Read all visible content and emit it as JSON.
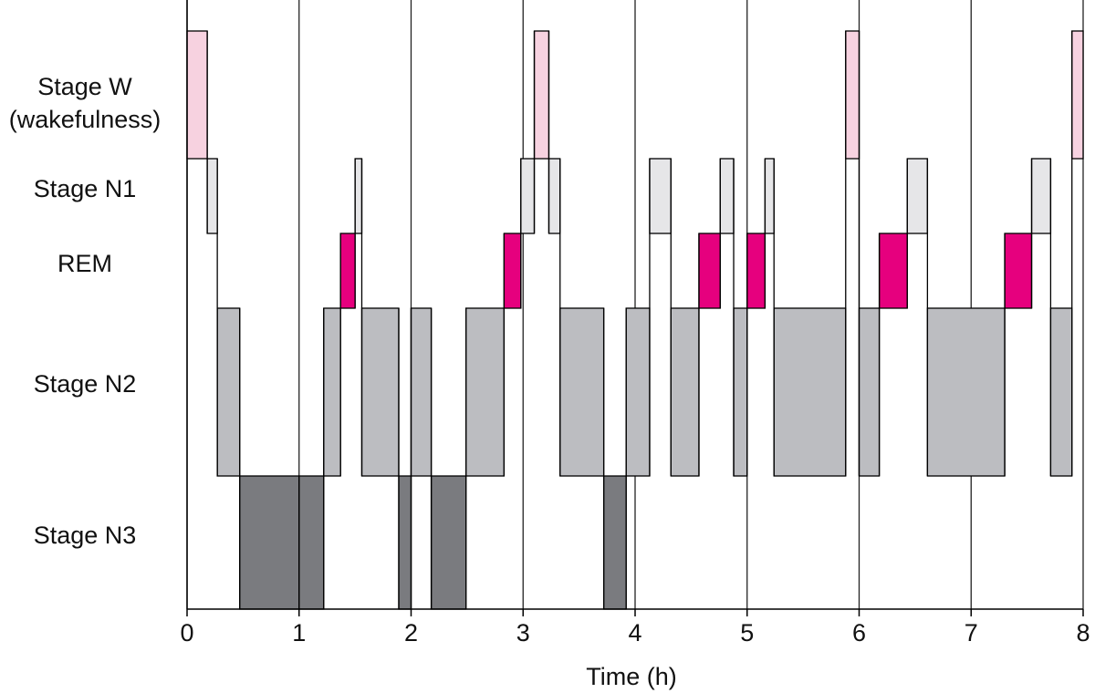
{
  "chart_data": {
    "type": "hypnogram",
    "xlabel": "Time (h)",
    "xlim": [
      0,
      8
    ],
    "x_ticks": [
      "0",
      "1",
      "2",
      "3",
      "4",
      "5",
      "6",
      "7",
      "8"
    ],
    "stage_labels": [
      {
        "key": "W",
        "lines": [
          "Stage W",
          "(wakefulness)"
        ]
      },
      {
        "key": "N1",
        "lines": [
          "Stage N1"
        ]
      },
      {
        "key": "REM",
        "lines": [
          "REM"
        ]
      },
      {
        "key": "N2",
        "lines": [
          "Stage N2"
        ]
      },
      {
        "key": "N3",
        "lines": [
          "Stage N3"
        ]
      }
    ],
    "grid_vertical": true,
    "colors": {
      "W": "#f7d2e0",
      "N1": "#e6e6e8",
      "REM": "#e6007e",
      "N2": "#bcbdc1",
      "N3": "#7a7b7f",
      "outline": "#000000"
    },
    "segments": [
      {
        "stage": "W",
        "start": 0.0,
        "end": 0.18
      },
      {
        "stage": "N1",
        "start": 0.18,
        "end": 0.27
      },
      {
        "stage": "N2",
        "start": 0.27,
        "end": 0.47
      },
      {
        "stage": "N3",
        "start": 0.47,
        "end": 1.0
      },
      {
        "stage": "N3",
        "start": 1.0,
        "end": 1.22
      },
      {
        "stage": "N2",
        "start": 1.22,
        "end": 1.37
      },
      {
        "stage": "REM",
        "start": 1.37,
        "end": 1.5
      },
      {
        "stage": "N1",
        "start": 1.5,
        "end": 1.56
      },
      {
        "stage": "N2",
        "start": 1.56,
        "end": 1.89
      },
      {
        "stage": "N3",
        "start": 1.89,
        "end": 2.0
      },
      {
        "stage": "N2",
        "start": 2.0,
        "end": 2.18
      },
      {
        "stage": "N3",
        "start": 2.18,
        "end": 2.49
      },
      {
        "stage": "N2",
        "start": 2.49,
        "end": 2.83
      },
      {
        "stage": "REM",
        "start": 2.83,
        "end": 2.98
      },
      {
        "stage": "N1",
        "start": 2.98,
        "end": 3.1
      },
      {
        "stage": "W",
        "start": 3.1,
        "end": 3.23
      },
      {
        "stage": "N1",
        "start": 3.23,
        "end": 3.33
      },
      {
        "stage": "N2",
        "start": 3.33,
        "end": 3.72
      },
      {
        "stage": "N3",
        "start": 3.72,
        "end": 3.92
      },
      {
        "stage": "N2",
        "start": 3.92,
        "end": 4.13
      },
      {
        "stage": "N1",
        "start": 4.13,
        "end": 4.32
      },
      {
        "stage": "N2",
        "start": 4.32,
        "end": 4.57
      },
      {
        "stage": "REM",
        "start": 4.57,
        "end": 4.76
      },
      {
        "stage": "N1",
        "start": 4.76,
        "end": 4.88
      },
      {
        "stage": "N2",
        "start": 4.88,
        "end": 5.0
      },
      {
        "stage": "REM",
        "start": 5.0,
        "end": 5.16
      },
      {
        "stage": "N1",
        "start": 5.16,
        "end": 5.24
      },
      {
        "stage": "N2",
        "start": 5.24,
        "end": 5.88
      },
      {
        "stage": "W",
        "start": 5.88,
        "end": 6.0
      },
      {
        "stage": "N2",
        "start": 6.0,
        "end": 6.18
      },
      {
        "stage": "REM",
        "start": 6.18,
        "end": 6.43
      },
      {
        "stage": "N1",
        "start": 6.43,
        "end": 6.61
      },
      {
        "stage": "N2",
        "start": 6.61,
        "end": 7.3
      },
      {
        "stage": "REM",
        "start": 7.3,
        "end": 7.54
      },
      {
        "stage": "N1",
        "start": 7.54,
        "end": 7.71
      },
      {
        "stage": "N2",
        "start": 7.71,
        "end": 7.9
      },
      {
        "stage": "W",
        "start": 7.9,
        "end": 8.0
      }
    ]
  }
}
